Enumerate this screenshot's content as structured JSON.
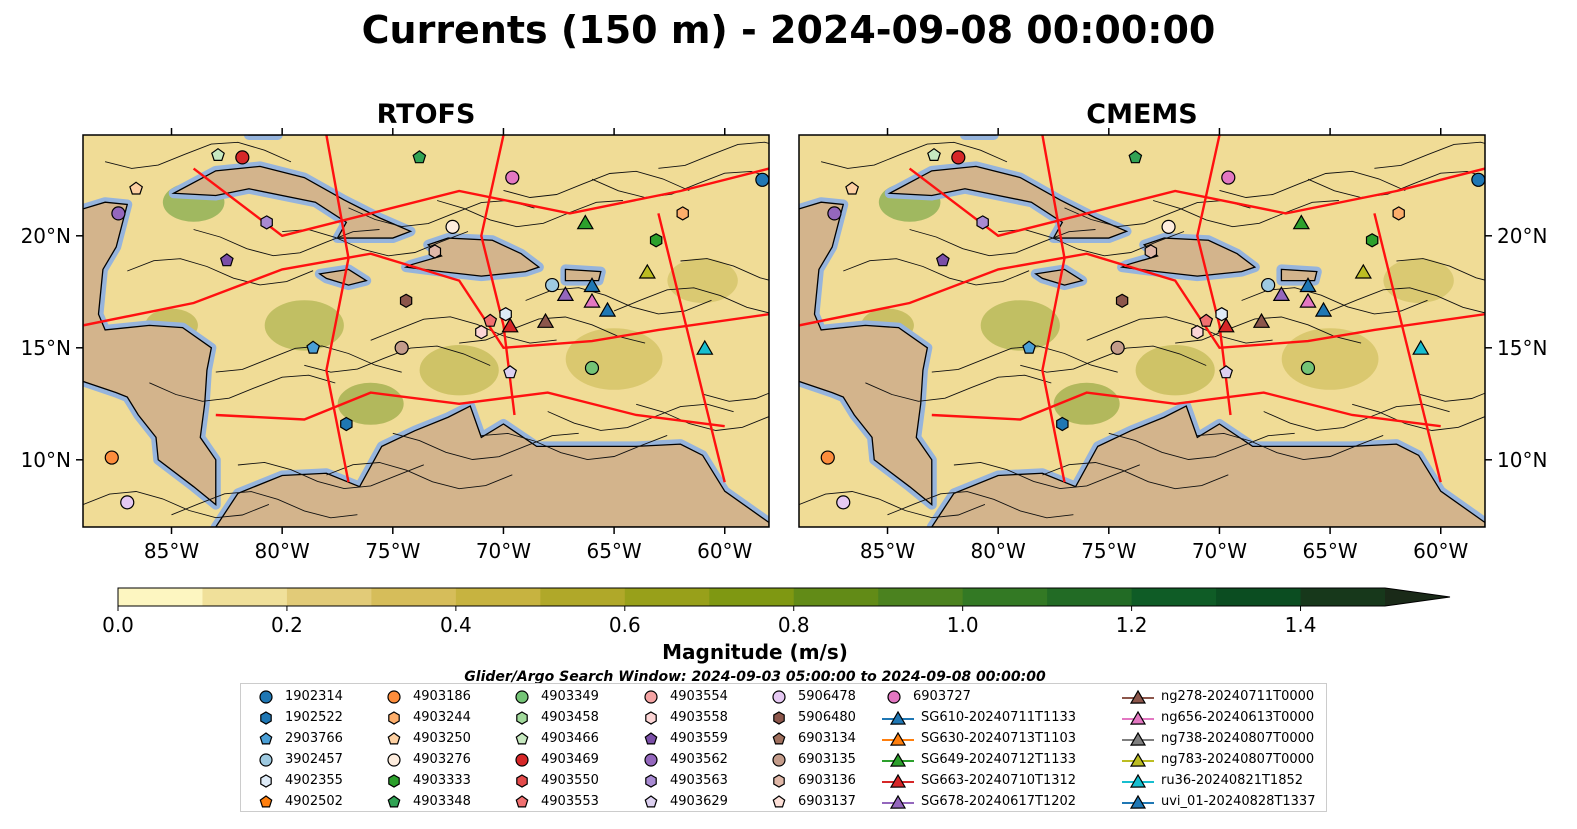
{
  "title": "Currents (150 m) - 2024-09-08 00:00:00",
  "panels": [
    {
      "name": "RTOFS"
    },
    {
      "name": "CMEMS"
    }
  ],
  "axes": {
    "lon_ticks": [
      "85°W",
      "80°W",
      "75°W",
      "70°W",
      "65°W",
      "60°W"
    ],
    "lat_ticks": [
      "20°N",
      "15°N",
      "10°N"
    ],
    "lon_range": [
      -89,
      -58
    ],
    "lat_range": [
      7,
      24.5
    ]
  },
  "colorbar": {
    "label": "Magnitude (m/s)",
    "ticks": [
      "0.0",
      "0.2",
      "0.4",
      "0.6",
      "0.8",
      "1.0",
      "1.2",
      "1.4"
    ],
    "range": [
      0,
      1.5
    ],
    "extend": "max",
    "colors": [
      "#fdf6c1",
      "#f0e09a",
      "#e2cb78",
      "#d6bd5a",
      "#c7b340",
      "#b0a829",
      "#98a01a",
      "#7f9812",
      "#628b17",
      "#4b821f",
      "#337924",
      "#226b25",
      "#0f5c26",
      "#0b4d21",
      "#17381b",
      "#1a2a18"
    ]
  },
  "search_window": "Glider/Argo Search Window: 2024-09-03 05:00:00 to 2024-09-08 00:00:00",
  "colors": {
    "ocean": "#f0dc96",
    "land": "#d3b48c",
    "shelf": "#96b4dc",
    "eez": "#ff1010"
  },
  "legend": [
    [
      {
        "label": "1902314",
        "shape": "circle",
        "color": "#1f77b4"
      },
      {
        "label": "1902522",
        "shape": "hexagon",
        "color": "#1f77b4"
      },
      {
        "label": "2903766",
        "shape": "pentagon",
        "color": "#4a9fd6"
      },
      {
        "label": "3902457",
        "shape": "circle",
        "color": "#9ecae1"
      },
      {
        "label": "4902355",
        "shape": "hexagon",
        "color": "#deebf7"
      },
      {
        "label": "4902502",
        "shape": "pentagon",
        "color": "#ff7f0e"
      }
    ],
    [
      {
        "label": "4903186",
        "shape": "circle",
        "color": "#fd8d3c"
      },
      {
        "label": "4903244",
        "shape": "hexagon",
        "color": "#fdae6b"
      },
      {
        "label": "4903250",
        "shape": "pentagon",
        "color": "#fdd0a2"
      },
      {
        "label": "4903276",
        "shape": "circle",
        "color": "#feedde"
      },
      {
        "label": "4903333",
        "shape": "hexagon",
        "color": "#2ca02c"
      },
      {
        "label": "4903348",
        "shape": "pentagon",
        "color": "#31a354"
      }
    ],
    [
      {
        "label": "4903349",
        "shape": "circle",
        "color": "#74c476"
      },
      {
        "label": "4903458",
        "shape": "hexagon",
        "color": "#a1d99b"
      },
      {
        "label": "4903466",
        "shape": "pentagon",
        "color": "#c7e9c0"
      },
      {
        "label": "4903469",
        "shape": "circle",
        "color": "#d62728"
      },
      {
        "label": "4903550",
        "shape": "hexagon",
        "color": "#e34a4a"
      },
      {
        "label": "4903553",
        "shape": "pentagon",
        "color": "#f07070"
      }
    ],
    [
      {
        "label": "4903554",
        "shape": "circle",
        "color": "#f4a3a3"
      },
      {
        "label": "4903558",
        "shape": "hexagon",
        "color": "#fcd5d5"
      },
      {
        "label": "4903559",
        "shape": "pentagon",
        "color": "#7b4fa8"
      },
      {
        "label": "4903562",
        "shape": "circle",
        "color": "#9467bd"
      },
      {
        "label": "4903563",
        "shape": "hexagon",
        "color": "#a88ad2"
      },
      {
        "label": "4903629",
        "shape": "pentagon",
        "color": "#dcd0f0"
      }
    ],
    [
      {
        "label": "5906478",
        "shape": "circle",
        "color": "#e5c8f2"
      },
      {
        "label": "5906480",
        "shape": "hexagon",
        "color": "#8c564b"
      },
      {
        "label": "6903134",
        "shape": "pentagon",
        "color": "#a0705e"
      },
      {
        "label": "6903135",
        "shape": "circle",
        "color": "#c49c8b"
      },
      {
        "label": "6903136",
        "shape": "hexagon",
        "color": "#e0b8a8"
      },
      {
        "label": "6903137",
        "shape": "pentagon",
        "color": "#fde0d8"
      }
    ],
    [
      {
        "label": "6903727",
        "shape": "circle",
        "color": "#e377c2"
      },
      {
        "label": "SG610-20240711T1133",
        "shape": "triangle-line",
        "color": "#1f77b4"
      },
      {
        "label": "SG630-20240713T1103",
        "shape": "triangle-line",
        "color": "#ff7f0e"
      },
      {
        "label": "SG649-20240712T1133",
        "shape": "triangle-line",
        "color": "#2ca02c"
      },
      {
        "label": "SG663-20240710T1312",
        "shape": "triangle-line",
        "color": "#d62728"
      },
      {
        "label": "SG678-20240617T1202",
        "shape": "triangle-line",
        "color": "#9467bd"
      }
    ],
    [
      {
        "label": "ng278-20240711T0000",
        "shape": "triangle-line",
        "color": "#8c564b"
      },
      {
        "label": "ng656-20240613T0000",
        "shape": "triangle-line",
        "color": "#e377c2"
      },
      {
        "label": "ng738-20240807T0000",
        "shape": "triangle-line",
        "color": "#7f7f7f"
      },
      {
        "label": "ng783-20240807T0000",
        "shape": "triangle-line",
        "color": "#bcbd22"
      },
      {
        "label": "ru36-20240821T1852",
        "shape": "triangle-line",
        "color": "#17becf"
      },
      {
        "label": "uvi_01-20240828T1337",
        "shape": "triangle-line",
        "color": "#1f77b4"
      }
    ]
  ],
  "markers": [
    {
      "label": "1902314",
      "lon": -58.3,
      "lat": 22.5
    },
    {
      "label": "1902522",
      "lon": -77.1,
      "lat": 11.6
    },
    {
      "label": "2903766",
      "lon": -78.6,
      "lat": 15.0
    },
    {
      "label": "3902457",
      "lon": -67.8,
      "lat": 17.8
    },
    {
      "label": "4902355",
      "lon": -69.9,
      "lat": 16.5
    },
    {
      "label": "4903186",
      "lon": -87.7,
      "lat": 10.1
    },
    {
      "label": "4903244",
      "lon": -61.9,
      "lat": 21.0
    },
    {
      "label": "4903250",
      "lon": -86.6,
      "lat": 22.1
    },
    {
      "label": "4903276",
      "lon": -72.3,
      "lat": 20.4
    },
    {
      "label": "4903333",
      "lon": -63.1,
      "lat": 19.8
    },
    {
      "label": "4903348",
      "lon": -73.8,
      "lat": 23.5
    },
    {
      "label": "4903349",
      "lon": -66.0,
      "lat": 14.1
    },
    {
      "label": "4903466",
      "lon": -82.9,
      "lat": 23.6
    },
    {
      "label": "4903469",
      "lon": -81.8,
      "lat": 23.5
    },
    {
      "label": "4903553",
      "lon": -70.6,
      "lat": 16.2
    },
    {
      "label": "4903558",
      "lon": -71.0,
      "lat": 15.7
    },
    {
      "label": "4903559",
      "lon": -82.5,
      "lat": 18.9
    },
    {
      "label": "4903562",
      "lon": -87.4,
      "lat": 21.0
    },
    {
      "label": "4903563",
      "lon": -80.7,
      "lat": 20.6
    },
    {
      "label": "4903629",
      "lon": -69.7,
      "lat": 13.9
    },
    {
      "label": "5906478",
      "lon": -87.0,
      "lat": 8.1
    },
    {
      "label": "5906480",
      "lon": -74.4,
      "lat": 17.1
    },
    {
      "label": "6903135",
      "lon": -74.6,
      "lat": 15.0
    },
    {
      "label": "6903136",
      "lon": -73.1,
      "lat": 19.3
    },
    {
      "label": "6903727",
      "lon": -69.6,
      "lat": 22.6
    },
    {
      "label": "SG610-20240711T1133",
      "lon": -65.3,
      "lat": 16.7
    },
    {
      "label": "SG649-20240712T1133",
      "lon": -66.3,
      "lat": 20.6
    },
    {
      "label": "SG663-20240710T1312",
      "lon": -69.7,
      "lat": 16.0
    },
    {
      "label": "SG678-20240617T1202",
      "lon": -67.2,
      "lat": 17.4
    },
    {
      "label": "ng278-20240711T0000",
      "lon": -68.1,
      "lat": 16.2
    },
    {
      "label": "ng656-20240613T0000",
      "lon": -66.0,
      "lat": 17.1
    },
    {
      "label": "ng783-20240807T0000",
      "lon": -63.5,
      "lat": 18.4
    },
    {
      "label": "ru36-20240821T1852",
      "lon": -60.9,
      "lat": 15.0
    },
    {
      "label": "uvi_01-20240828T1337",
      "lon": -66.0,
      "lat": 17.8
    }
  ]
}
